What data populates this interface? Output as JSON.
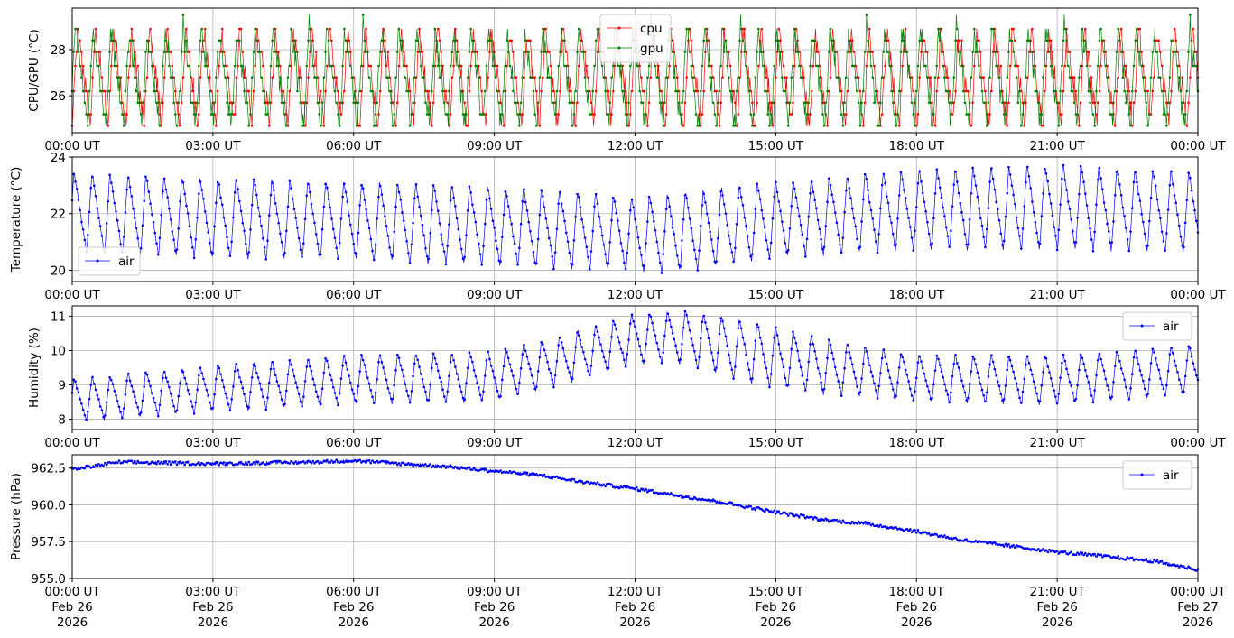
{
  "chart_data": [
    {
      "type": "line",
      "id": "cpu-gpu",
      "ylabel": "CPU/GPU (°C)",
      "ylim": [
        24.4,
        29.8
      ],
      "yticks": [
        26,
        28
      ],
      "ytick_labels": [
        "26",
        "28"
      ],
      "grid": true,
      "legend_loc": "top-center",
      "x_start": "2026-02-26T00:00:00Z",
      "x_end": "2026-02-27T00:00:00Z",
      "xticks": [
        "00:00 UT",
        "03:00 UT",
        "06:00 UT",
        "09:00 UT",
        "12:00 UT",
        "15:00 UT",
        "18:00 UT",
        "21:00 UT",
        "00:00 UT"
      ],
      "series": [
        {
          "name": "cpu",
          "color": "#ff0000",
          "levels": [
            24.7,
            25.2,
            25.7,
            26.2,
            26.8,
            27.3,
            27.9,
            28.4,
            28.9
          ],
          "min": 24.7,
          "max": 28.9,
          "period_minutes": 23
        },
        {
          "name": "gpu",
          "color": "#008000",
          "levels": [
            24.7,
            25.2,
            25.7,
            26.2,
            26.8,
            27.3,
            27.9,
            28.4,
            28.9,
            29.5
          ],
          "min": 24.7,
          "max": 29.5,
          "period_minutes": 23
        }
      ]
    },
    {
      "type": "line",
      "id": "temperature",
      "ylabel": "Temperature (°C)",
      "ylim": [
        19.6,
        24.0
      ],
      "yticks": [
        20,
        22,
        24
      ],
      "ytick_labels": [
        "20",
        "22",
        "24"
      ],
      "grid": true,
      "legend_loc": "bottom-left",
      "x_start": "2026-02-26T00:00:00Z",
      "x_end": "2026-02-27T00:00:00Z",
      "xticks": [
        "00:00 UT",
        "03:00 UT",
        "06:00 UT",
        "09:00 UT",
        "12:00 UT",
        "15:00 UT",
        "18:00 UT",
        "21:00 UT",
        "00:00 UT"
      ],
      "series": [
        {
          "name": "air",
          "color": "#0000ff",
          "period_minutes": 23,
          "envelope_hours": [
            0,
            3,
            6,
            9,
            11,
            12,
            13,
            15,
            18,
            21,
            24
          ],
          "envelope_min": [
            20.6,
            20.4,
            20.3,
            20.1,
            20.0,
            19.9,
            19.9,
            20.4,
            20.7,
            20.7,
            20.6
          ],
          "envelope_max": [
            23.5,
            23.3,
            23.2,
            23.0,
            22.8,
            22.6,
            22.8,
            23.2,
            23.6,
            23.8,
            23.5
          ]
        }
      ]
    },
    {
      "type": "line",
      "id": "humidity",
      "ylabel": "Humidity (%)",
      "ylim": [
        7.7,
        11.3
      ],
      "yticks": [
        8,
        9,
        10,
        11
      ],
      "ytick_labels": [
        "8",
        "9",
        "10",
        "11"
      ],
      "grid": true,
      "legend_loc": "top-right",
      "x_start": "2026-02-26T00:00:00Z",
      "x_end": "2026-02-27T00:00:00Z",
      "xticks": [
        "00:00 UT",
        "03:00 UT",
        "06:00 UT",
        "09:00 UT",
        "12:00 UT",
        "15:00 UT",
        "18:00 UT",
        "21:00 UT",
        "00:00 UT"
      ],
      "series": [
        {
          "name": "air",
          "color": "#0000ff",
          "period_minutes": 23,
          "envelope_hours": [
            0,
            3,
            6,
            9,
            10.5,
            12,
            13,
            14.5,
            16,
            18,
            21,
            24
          ],
          "envelope_min": [
            7.9,
            8.2,
            8.4,
            8.5,
            9.0,
            9.6,
            9.6,
            9.0,
            8.7,
            8.5,
            8.4,
            8.7
          ],
          "envelope_max": [
            9.2,
            9.6,
            9.9,
            10.0,
            10.5,
            11.1,
            11.2,
            10.9,
            10.4,
            9.9,
            9.9,
            10.2
          ]
        }
      ]
    },
    {
      "type": "line",
      "id": "pressure",
      "ylabel": "Pressure (hPa)",
      "ylim": [
        955.0,
        963.4
      ],
      "yticks": [
        955.0,
        957.5,
        960.0,
        962.5
      ],
      "ytick_labels": [
        "955.0",
        "957.5",
        "960.0",
        "962.5"
      ],
      "grid": true,
      "legend_loc": "top-right",
      "x_start": "2026-02-26T00:00:00Z",
      "x_end": "2026-02-27T00:00:00Z",
      "xticks": [
        "00:00 UT",
        "03:00 UT",
        "06:00 UT",
        "09:00 UT",
        "12:00 UT",
        "15:00 UT",
        "18:00 UT",
        "21:00 UT",
        "00:00 UT"
      ],
      "xtick_dates": [
        "Feb 26",
        "Feb 26",
        "Feb 26",
        "Feb 26",
        "Feb 26",
        "Feb 26",
        "Feb 26",
        "Feb 26",
        "Feb 27"
      ],
      "xtick_years": [
        "2026",
        "2026",
        "2026",
        "2026",
        "2026",
        "2026",
        "2026",
        "2026",
        "2026"
      ],
      "series": [
        {
          "name": "air",
          "color": "#0000ff",
          "trend_hours": [
            0,
            1,
            3,
            5,
            6,
            7,
            8,
            9,
            10,
            11,
            12,
            13,
            14,
            15,
            16,
            17,
            18,
            19,
            20,
            21,
            22,
            23,
            24
          ],
          "trend_values": [
            962.4,
            962.9,
            962.8,
            962.9,
            963.0,
            962.8,
            962.6,
            962.3,
            962.0,
            961.5,
            961.1,
            960.6,
            960.1,
            959.5,
            959.0,
            958.7,
            958.2,
            957.6,
            957.2,
            956.8,
            956.5,
            956.2,
            955.6
          ]
        }
      ]
    }
  ]
}
